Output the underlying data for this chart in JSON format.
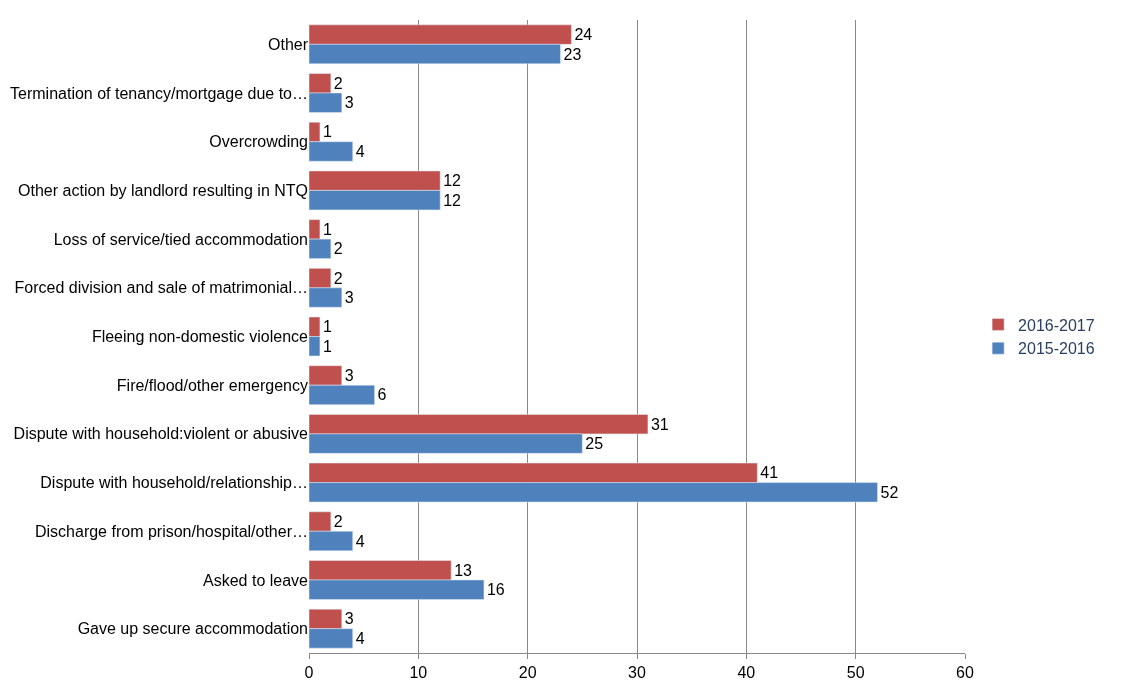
{
  "chart_data": {
    "type": "bar",
    "orientation": "horizontal",
    "categories": [
      "Other",
      "Termination of tenancy/mortgage due to…",
      "Overcrowding",
      "Other action by landlord resulting in NTQ",
      "Loss of service/tied accommodation",
      "Forced division and sale of matrimonial…",
      "Fleeing non-domestic violence",
      "Fire/flood/other emergency",
      "Dispute with household:violent or abusive",
      "Dispute with household/relationship…",
      "Discharge from prison/hospital/other…",
      "Asked to leave",
      "Gave up secure accommodation"
    ],
    "series": [
      {
        "name": "2016-2017",
        "color": "#c0504d",
        "values": [
          24,
          2,
          1,
          12,
          1,
          2,
          1,
          3,
          31,
          41,
          2,
          13,
          3
        ]
      },
      {
        "name": "2015-2016",
        "color": "#4f81bd",
        "values": [
          23,
          3,
          4,
          12,
          2,
          3,
          1,
          6,
          25,
          52,
          4,
          16,
          4
        ]
      }
    ],
    "xlim": [
      0,
      60
    ],
    "xticks": [
      0,
      10,
      20,
      30,
      40,
      50,
      60
    ],
    "grid": "x",
    "legend": "right",
    "data_labels": true
  }
}
